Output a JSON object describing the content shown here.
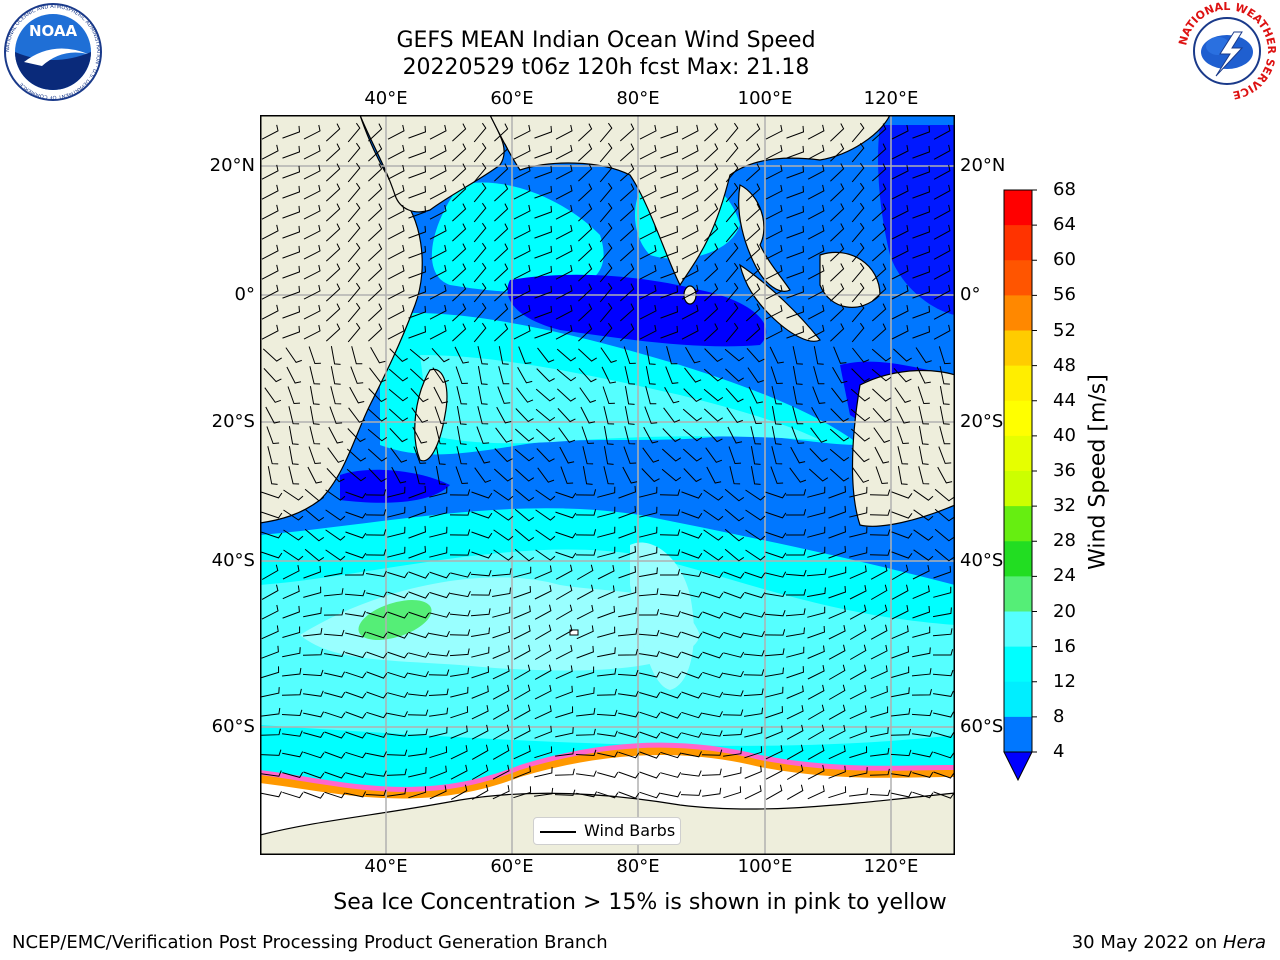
{
  "title": {
    "line1": "GEFS MEAN Indian Ocean Wind Speed",
    "line2": "20220529 t06z 120h fcst   Max: 21.18"
  },
  "map": {
    "lon_ticks": [
      "40°E",
      "60°E",
      "80°E",
      "100°E",
      "120°E"
    ],
    "lat_ticks_left": [
      "20°N",
      "0°",
      "20°S",
      "40°S",
      "60°S"
    ],
    "lat_ticks_right": [
      "20°N",
      "0°",
      "20°S",
      "40°S",
      "60°S"
    ],
    "legend_label": "Wind Barbs",
    "colors": {
      "land": "#eeeedc",
      "ice": "#ffffff",
      "ice_edge": [
        "#ff66cc",
        "#ff9900",
        "#ffff33"
      ]
    }
  },
  "colorbar": {
    "title": "Wind Speed [m/s]",
    "labels": [
      "68",
      "64",
      "60",
      "56",
      "52",
      "48",
      "44",
      "40",
      "36",
      "32",
      "28",
      "24",
      "20",
      "16",
      "12",
      "8",
      "4"
    ],
    "colors": [
      "#ff0000",
      "#ff3300",
      "#ff5500",
      "#ff8800",
      "#ffaa00",
      "#ffcc00",
      "#ffee00",
      "#ffff00",
      "#e6ff00",
      "#ccff00",
      "#66ee11",
      "#22dd22",
      "#55ee77",
      "#99ffff",
      "#55ffff",
      "#00ffff",
      "#00eeff",
      "#0077ff",
      "#0000ff"
    ]
  },
  "caption": "Sea Ice Concentration > 15% is shown in pink to yellow",
  "footer": {
    "left": "NCEP/EMC/Verification Post Processing Product Generation Branch",
    "right_date": "30 May 2022 on ",
    "right_host": "Hera"
  },
  "logos": {
    "noaa_text": "NOAA",
    "noaa_ring": "NATIONAL OCEANIC AND ATMOSPHERIC ADMINISTRATION · U.S. DEPARTMENT OF COMMERCE",
    "nws_ring": "NATIONAL WEATHER SERVICE"
  }
}
